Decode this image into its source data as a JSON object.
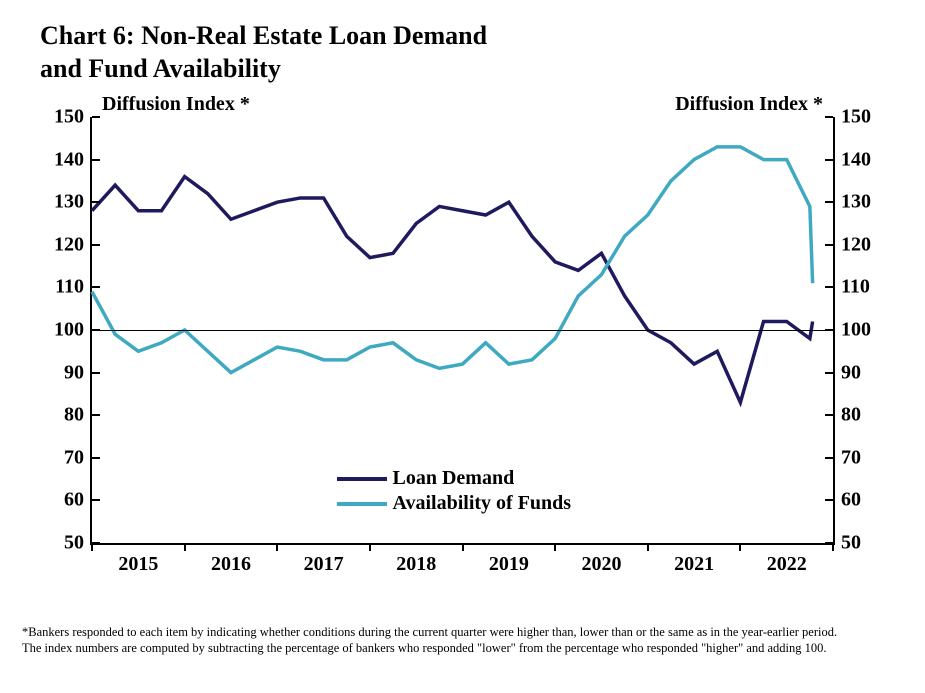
{
  "chart": {
    "type": "line",
    "title_line1": "Chart 6: Non-Real Estate Loan Demand",
    "title_line2": "and Fund Availability",
    "title_fontsize": 26,
    "axis_label_left": "Diffusion Index *",
    "axis_label_right": "Diffusion Index *",
    "label_fontsize": 20,
    "ylim": [
      50,
      150
    ],
    "ytick_step": 10,
    "yticks": [
      50,
      60,
      70,
      80,
      90,
      100,
      110,
      120,
      130,
      140,
      150
    ],
    "reference_line_y": 100,
    "xlim": [
      2015,
      2023
    ],
    "xtick_labels": [
      "2015",
      "2016",
      "2017",
      "2018",
      "2019",
      "2020",
      "2021",
      "2022"
    ],
    "xtick_positions": [
      2015,
      2016,
      2017,
      2018,
      2019,
      2020,
      2021,
      2022
    ],
    "background_color": "#ffffff",
    "axis_color": "#000000",
    "line_width": 3.5,
    "series": [
      {
        "name": "Loan Demand",
        "color": "#1f1a5e",
        "x": [
          2015.0,
          2015.25,
          2015.5,
          2015.75,
          2016.0,
          2016.25,
          2016.5,
          2016.75,
          2017.0,
          2017.25,
          2017.5,
          2017.75,
          2018.0,
          2018.25,
          2018.5,
          2018.75,
          2019.0,
          2019.25,
          2019.5,
          2019.75,
          2020.0,
          2020.25,
          2020.5,
          2020.75,
          2021.0,
          2021.25,
          2021.5,
          2021.75,
          2022.0,
          2022.25,
          2022.5,
          2022.75
        ],
        "y": [
          128,
          134,
          128,
          128,
          136,
          132,
          126,
          128,
          130,
          131,
          131,
          122,
          117,
          118,
          125,
          129,
          128,
          127,
          130,
          122,
          116,
          114,
          118,
          108,
          100,
          97,
          92,
          95,
          83,
          102,
          102,
          98
        ]
      },
      {
        "name": "Availability of Funds",
        "color": "#3fa9c1",
        "x": [
          2015.0,
          2015.25,
          2015.5,
          2015.75,
          2016.0,
          2016.25,
          2016.5,
          2016.75,
          2017.0,
          2017.25,
          2017.5,
          2017.75,
          2018.0,
          2018.25,
          2018.5,
          2018.75,
          2019.0,
          2019.25,
          2019.5,
          2019.75,
          2020.0,
          2020.25,
          2020.5,
          2020.75,
          2021.0,
          2021.25,
          2021.5,
          2021.75,
          2022.0,
          2022.25,
          2022.5,
          2022.75
        ],
        "y": [
          109,
          99,
          95,
          97,
          100,
          95,
          90,
          93,
          96,
          95,
          93,
          93,
          96,
          97,
          93,
          91,
          92,
          97,
          92,
          93,
          98,
          108,
          113,
          122,
          127,
          135,
          140,
          143,
          143,
          140,
          140,
          129
        ]
      }
    ],
    "series_last_point": {
      "x": 2022.78,
      "y_loan": 102,
      "y_funds": 111
    },
    "legend": {
      "items": [
        "Loan Demand",
        "Availability of Funds"
      ],
      "colors": [
        "#1f1a5e",
        "#3fa9c1"
      ],
      "position": "lower-center"
    }
  },
  "footnote": {
    "line1": "*Bankers responded to each item by indicating whether conditions during the current quarter were higher than, lower than or the same as in the year-earlier period.",
    "line2": "The index numbers are computed by subtracting the percentage of bankers who responded \"lower\" from the percentage who responded \"higher\" and adding 100.",
    "fontsize": 12.5
  }
}
